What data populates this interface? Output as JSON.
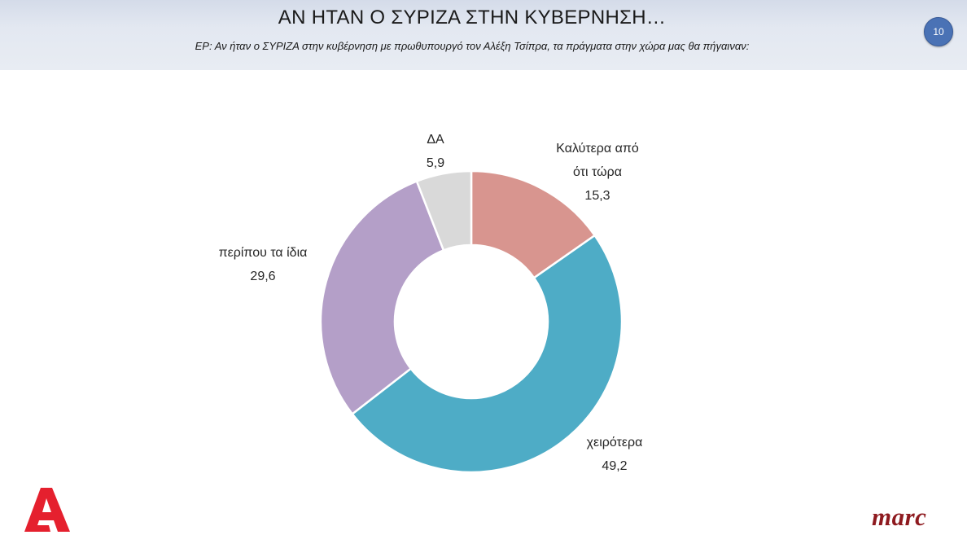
{
  "header": {
    "title": "ΑΝ ΗΤΑΝ Ο ΣΥΡΙΖΑ ΣΤΗΝ ΚΥΒΕΡΝΗΣΗ…",
    "subtitle": "ΕΡ: Αν ήταν ο ΣΥΡΙΖΑ στην κυβέρνηση με πρωθυπουργό τον Αλέξη Τσίπρα, τα πράγματα στην χώρα μας θα πήγαιναν:",
    "page_number": "10",
    "badge_color": "#4a72b5"
  },
  "chart_data": {
    "type": "pie",
    "donut": true,
    "slices": [
      {
        "label_lines": [
          "Καλύτερα από",
          "ότι τώρα"
        ],
        "value": 15.3,
        "value_text": "15,3",
        "color": "#d8958f"
      },
      {
        "label_lines": [
          "χειρότερα"
        ],
        "value": 49.2,
        "value_text": "49,2",
        "color": "#4eacc6"
      },
      {
        "label_lines": [
          "περίπου τα ίδια"
        ],
        "value": 29.6,
        "value_text": "29,6",
        "color": "#b49fc8"
      },
      {
        "label_lines": [
          "ΔΑ"
        ],
        "value": 5.9,
        "value_text": "5,9",
        "color": "#d9d9d9"
      }
    ]
  },
  "logos": {
    "alpha_text": "A",
    "alpha_color": "#e5202e",
    "marc_text": "marc",
    "marc_color": "#8e1a1f"
  }
}
